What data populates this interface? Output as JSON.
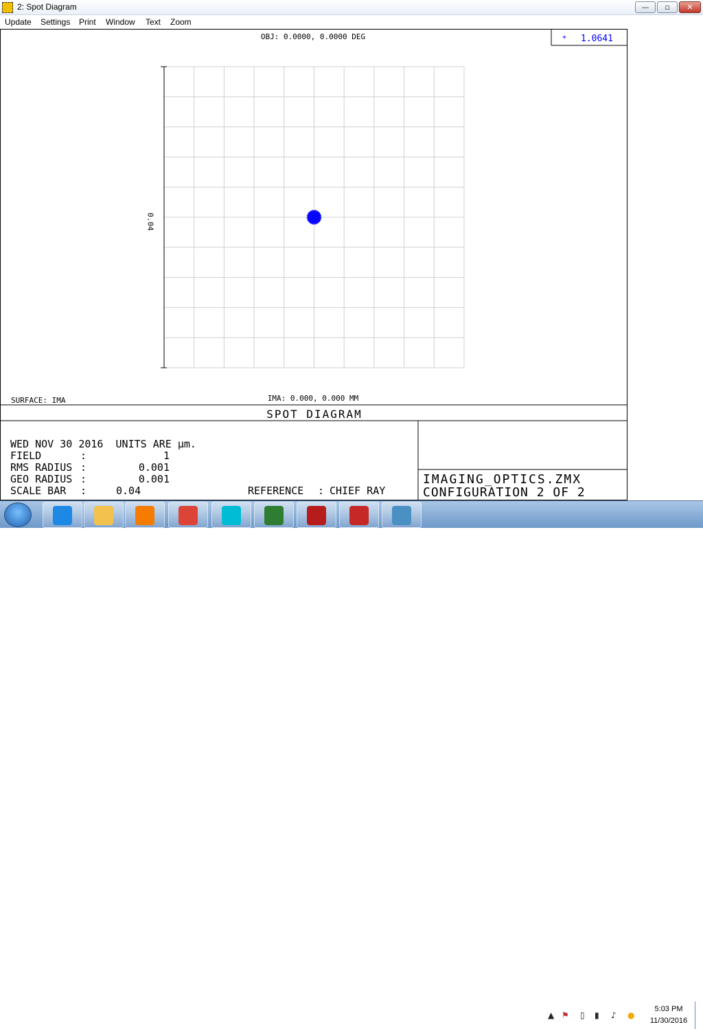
{
  "window": {
    "title": "2: Spot Diagram",
    "min_label": "—",
    "max_label": "▫",
    "close_label": "✕"
  },
  "menu": [
    "Update",
    "Settings",
    "Print",
    "Window",
    "Text",
    "Zoom"
  ],
  "plot": {
    "obj_label": "OBJ: 0.0000, 0.0000 DEG",
    "legend_symbol": "+",
    "legend_value": "1.0641",
    "scale_label": "0.04",
    "surface_label": "SURFACE: IMA",
    "ima_label": "IMA: 0.000, 0.000 MM",
    "title": "SPOT DIAGRAM",
    "spot_color": "#0000ff"
  },
  "info": {
    "date_line": "WED NOV 30 2016  UNITS ARE µm.",
    "field_label": "FIELD",
    "field_sep": ":",
    "field_value": "1",
    "rms_label": "RMS RADIUS",
    "rms_sep": ":",
    "rms_value": "0.001",
    "geo_label": "GEO RADIUS",
    "geo_sep": ":",
    "geo_value": "0.001",
    "scale_label": "SCALE BAR",
    "scale_sep": ":",
    "scale_value": "0.04",
    "reference_label": "REFERENCE",
    "reference_sep": ":",
    "reference_value": "CHIEF RAY",
    "file_name": "IMAGING_OPTICS.ZMX",
    "configuration": "CONFIGURATION 2 OF 2"
  },
  "taskbar": {
    "apps": [
      {
        "name": "internet-explorer",
        "color": "#1e88e5"
      },
      {
        "name": "file-explorer",
        "color": "#f2c14e"
      },
      {
        "name": "media-player",
        "color": "#f57c00"
      },
      {
        "name": "chrome",
        "color": "#db4437"
      },
      {
        "name": "zemax",
        "color": "#00bcd4"
      },
      {
        "name": "task-manager",
        "color": "#2e7d32"
      },
      {
        "name": "acrobat-reader",
        "color": "#b71c1c"
      },
      {
        "name": "mcafee",
        "color": "#c62828"
      },
      {
        "name": "photo-viewer",
        "color": "#4a90c2"
      }
    ],
    "time": "5:03 PM",
    "date": "11/30/2016"
  }
}
